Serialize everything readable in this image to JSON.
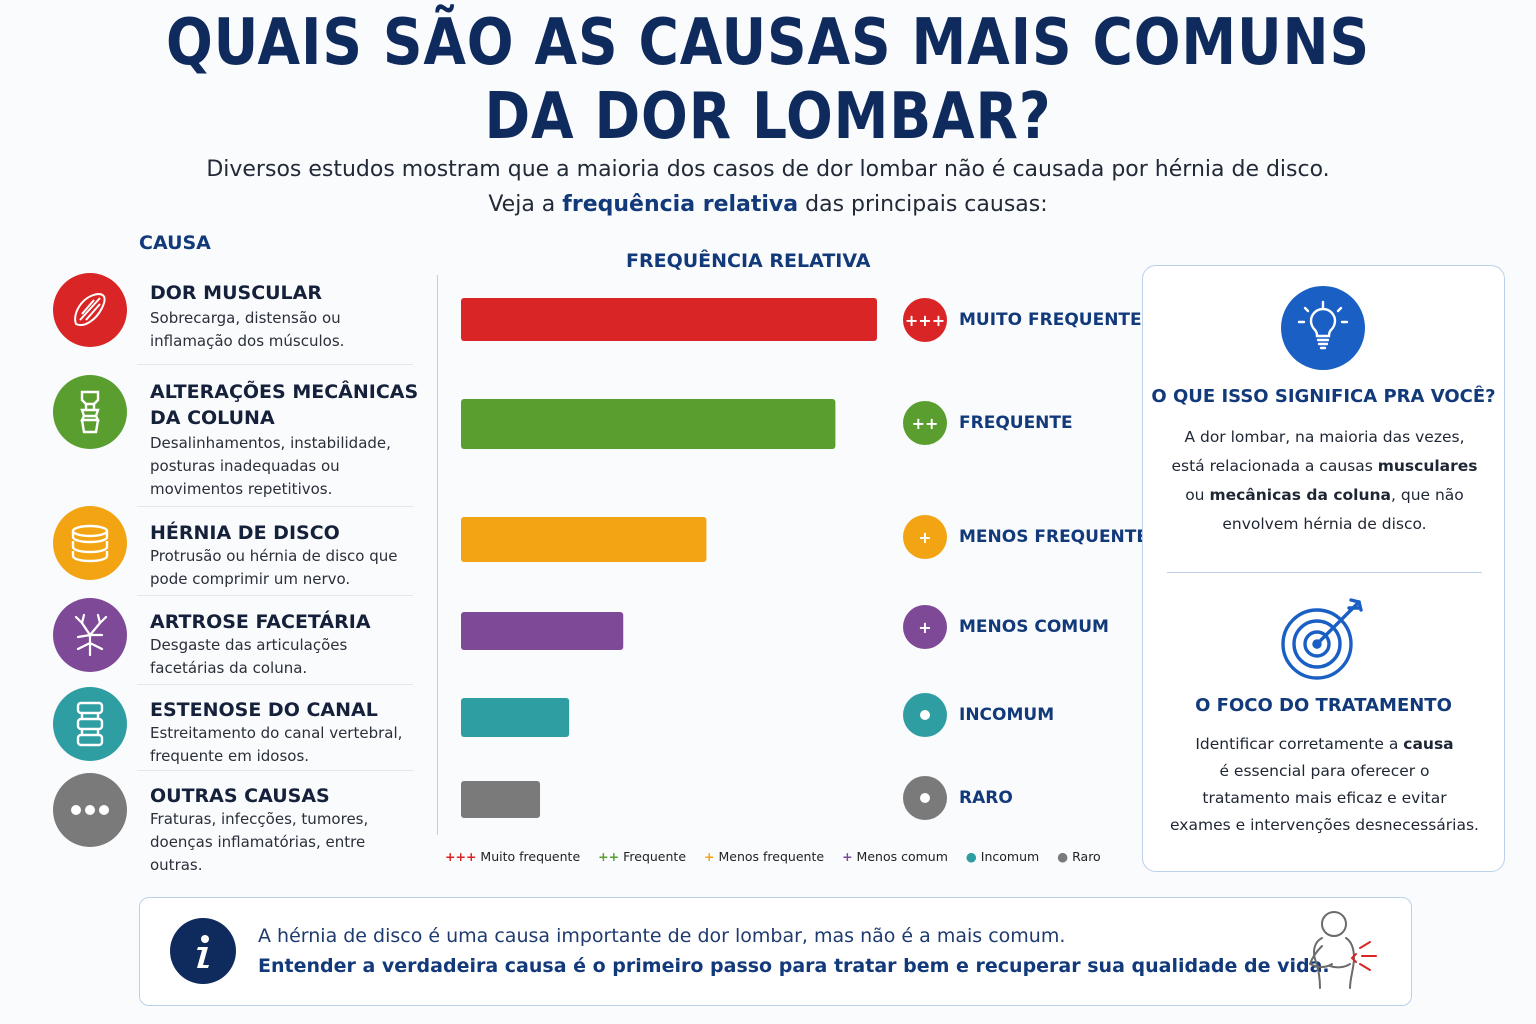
{
  "title": {
    "line1": "QUAIS SÃO AS CAUSAS MAIS COMUNS",
    "line2": "DA DOR LOMBAR?"
  },
  "subtitle": {
    "line1": "Diversos estudos mostram que a maioria dos casos de dor lombar não é causada por hérnia de disco.",
    "line2_pre": "Veja a ",
    "line2_bold": "frequência relativa",
    "line2_post": " das principais causas:"
  },
  "headers": {
    "causa": "CAUSA",
    "frequencia": "FREQUÊNCIA RELATIVA"
  },
  "causes": [
    {
      "name": "DOR MUSCULAR",
      "desc": "Sobrecarga, distensão ou inflamação dos músculos.",
      "icon": "muscle-icon",
      "color": "#d92525"
    },
    {
      "name": "ALTERAÇÕES MECÂNICAS DA COLUNA",
      "desc": "Desalinhamentos, instabilidade, posturas inadequadas ou movimentos repetitivos.",
      "icon": "spine-joint-icon",
      "color": "#5a9e2f"
    },
    {
      "name": "HÉRNIA DE DISCO",
      "desc": "Protrusão ou hérnia de disco que pode comprimir um nervo.",
      "icon": "disc-icon",
      "color": "#f2a413"
    },
    {
      "name": "ARTROSE FACETÁRIA",
      "desc": "Desgaste das articulações facetárias da coluna.",
      "icon": "nerve-icon",
      "color": "#7e4a98"
    },
    {
      "name": "ESTENOSE DO CANAL",
      "desc": "Estreitamento do canal vertebral, frequente em idosos.",
      "icon": "vertebra-icon",
      "color": "#2e9ea3"
    },
    {
      "name": "OUTRAS CAUSAS",
      "desc": "Fraturas, infecções, tumores, doenças inflamatórias, entre outras.",
      "icon": "more-dots-icon",
      "color": "#7a7a7a"
    }
  ],
  "chart_data": {
    "type": "bar",
    "orientation": "horizontal",
    "title": "FREQUÊNCIA RELATIVA",
    "categories": [
      "DOR MUSCULAR",
      "ALTERAÇÕES MECÂNICAS DA COLUNA",
      "HÉRNIA DE DISCO",
      "ARTROSE FACETÁRIA",
      "ESTENOSE DO CANAL",
      "OUTRAS CAUSAS"
    ],
    "values": [
      100,
      90,
      59,
      39,
      26,
      19
    ],
    "value_scale": "relative, longest bar = 100",
    "level_labels": [
      "MUITO FREQUENTE",
      "FREQUENTE",
      "MENOS FREQUENTE",
      "MENOS COMUM",
      "INCOMUM",
      "RARO"
    ],
    "level_symbols": [
      "+++",
      "++",
      "+",
      "+",
      "•",
      "•"
    ],
    "colors": [
      "#d92525",
      "#5a9e2f",
      "#f2a413",
      "#7e4a98",
      "#2e9ea3",
      "#7a7a7a"
    ],
    "legend": [
      {
        "symbol": "+++",
        "label": "Muito frequente",
        "color": "#d92525"
      },
      {
        "symbol": "++",
        "label": "Frequente",
        "color": "#5a9e2f"
      },
      {
        "symbol": "+",
        "label": "Menos frequente",
        "color": "#f2a413"
      },
      {
        "symbol": "+",
        "label": "Menos comum",
        "color": "#7e4a98"
      },
      {
        "symbol": "●",
        "label": "Incomum",
        "color": "#2e9ea3"
      },
      {
        "symbol": "●",
        "label": "Raro",
        "color": "#7a7a7a"
      }
    ],
    "legend_position": "bottom"
  },
  "panel": {
    "h1": "O QUE ISSO SIGNIFICA PRA VOCÊ?",
    "p1_a": "A dor lombar, na maioria das vezes,",
    "p1_b": "está relacionada a causas ",
    "p1_b_bold": "musculares",
    "p1_c": "ou ",
    "p1_c_bold": "mecânicas da coluna",
    "p1_c_post": ", que não",
    "p1_d": "envolvem hérnia de disco.",
    "h2": "O FOCO DO TRATAMENTO",
    "p2_a": "Identificar corretamente a ",
    "p2_a_bold": "causa",
    "p2_b": "é essencial para oferecer o",
    "p2_c": "tratamento mais eficaz e evitar",
    "p2_d": "exames e intervenções desnecessárias."
  },
  "bottom": {
    "line1": "A hérnia de disco é uma causa importante de dor lombar, mas não é a mais comum.",
    "line2": "Entender a verdadeira causa é o primeiro passo para tratar bem e recuperar sua qualidade de vida."
  }
}
